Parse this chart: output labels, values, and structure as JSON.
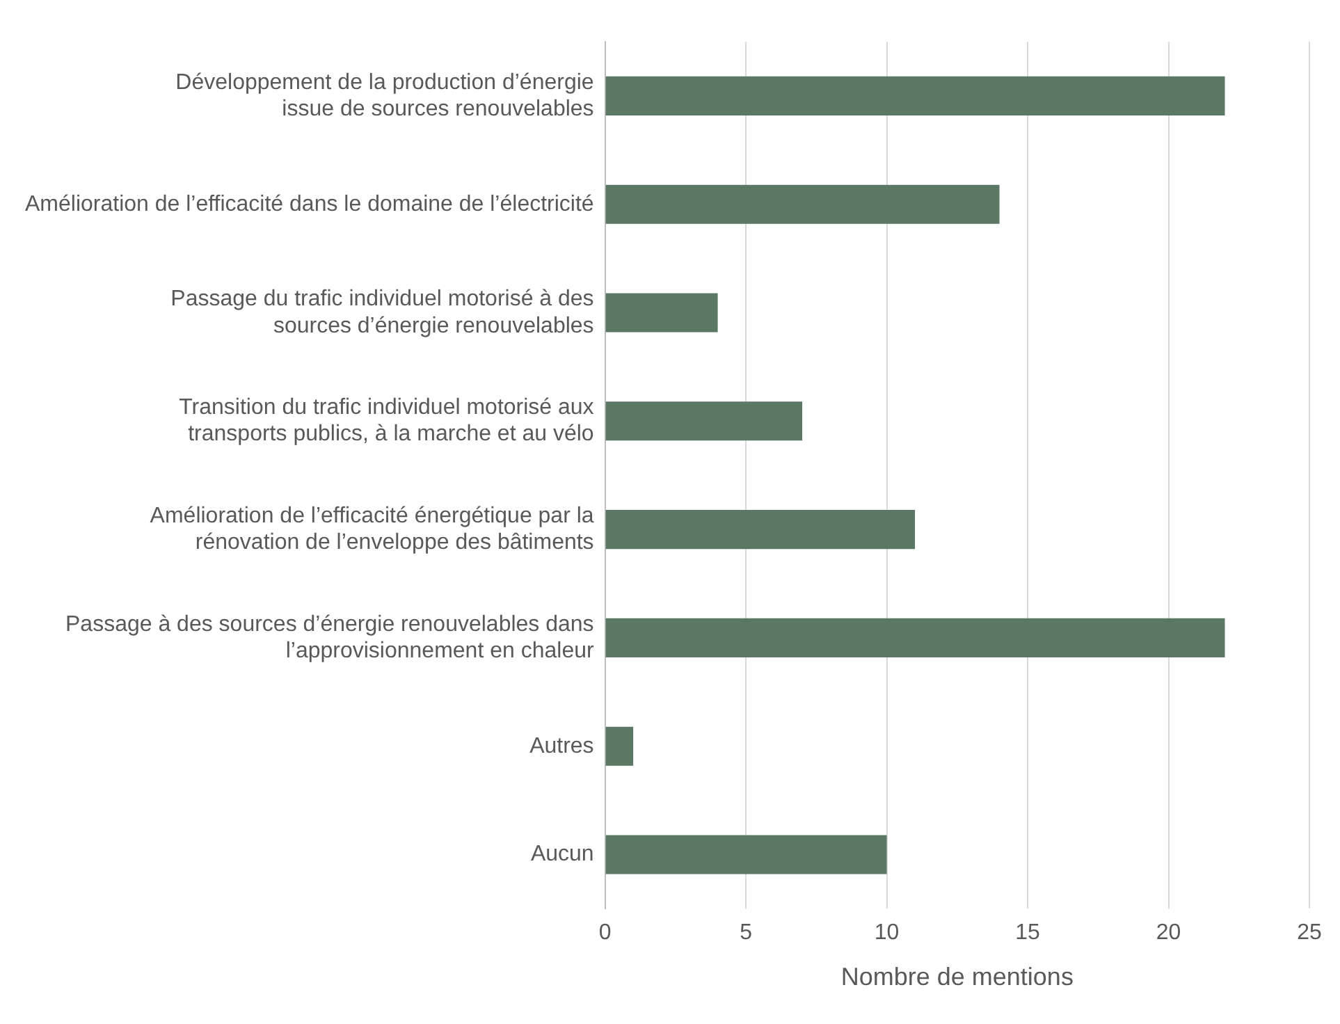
{
  "chart_data": {
    "type": "bar",
    "orientation": "horizontal",
    "xlabel": "Nombre de mentions",
    "categories": [
      "Développement de la production d’énergie\nissue de sources renouvelables",
      "Amélioration de l’efficacité dans le domaine de l’électricité",
      "Passage du trafic individuel motorisé à des\nsources d’énergie renouvelables",
      "Transition du trafic individuel motorisé aux\ntransports publics, à la marche et au vélo",
      "Amélioration de l’efficacité énergétique par la\nrénovation de l’enveloppe des bâtiments",
      "Passage à des sources d’énergie renouvelables dans\nl’approvisionnement en chaleur",
      "Autres",
      "Aucun"
    ],
    "values": [
      22,
      14,
      4,
      7,
      11,
      22,
      1,
      10
    ],
    "color": "#5a7863",
    "xlim": [
      0,
      25
    ],
    "xticks": [
      0,
      5,
      10,
      15,
      20,
      25
    ],
    "grid": "x",
    "legend": false
  }
}
